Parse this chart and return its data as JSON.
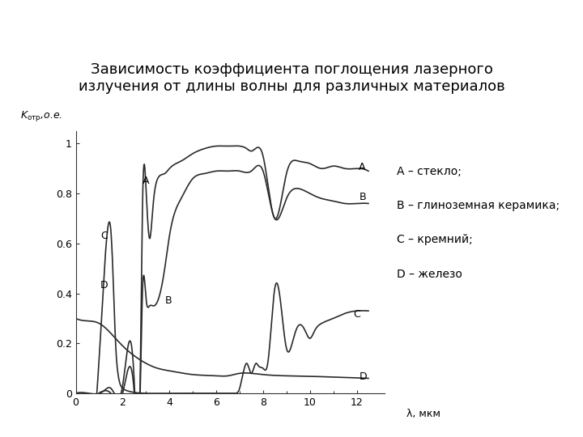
{
  "title_line1": "Зависимость коэффициента поглощения лазерного",
  "title_line2": "излучения от длины волны для различных материалов",
  "xlabel": "λ, мкм",
  "xlim": [
    0,
    12.5
  ],
  "ylim": [
    0,
    1.05
  ],
  "xticks": [
    0,
    2,
    4,
    6,
    8,
    10,
    12
  ],
  "yticks": [
    0,
    0.2,
    0.4,
    0.6,
    0.8,
    1
  ],
  "legend": [
    "A – стекло;",
    "B – глиноземная керамика;",
    "C – кремний;",
    "D – железо"
  ],
  "header_bg": "#7a8fc5",
  "bg_color": "#ffffff",
  "line_color": "#2a2a2a",
  "title_fontsize": 13,
  "legend_fontsize": 10
}
